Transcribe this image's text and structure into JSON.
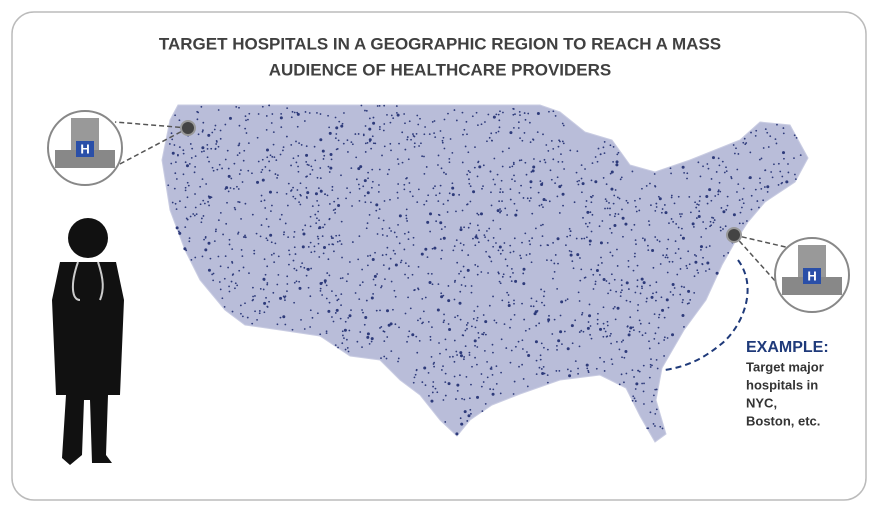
{
  "title_lines": [
    "TARGET HOSPITALS IN A GEOGRAPHIC REGION TO REACH A MASS",
    "AUDIENCE OF HEALTHCARE PROVIDERS"
  ],
  "example": {
    "heading": "EXAMPLE:",
    "lines": [
      "Target major",
      "hospitals in",
      "NYC,",
      "Boston, etc."
    ]
  }
}
